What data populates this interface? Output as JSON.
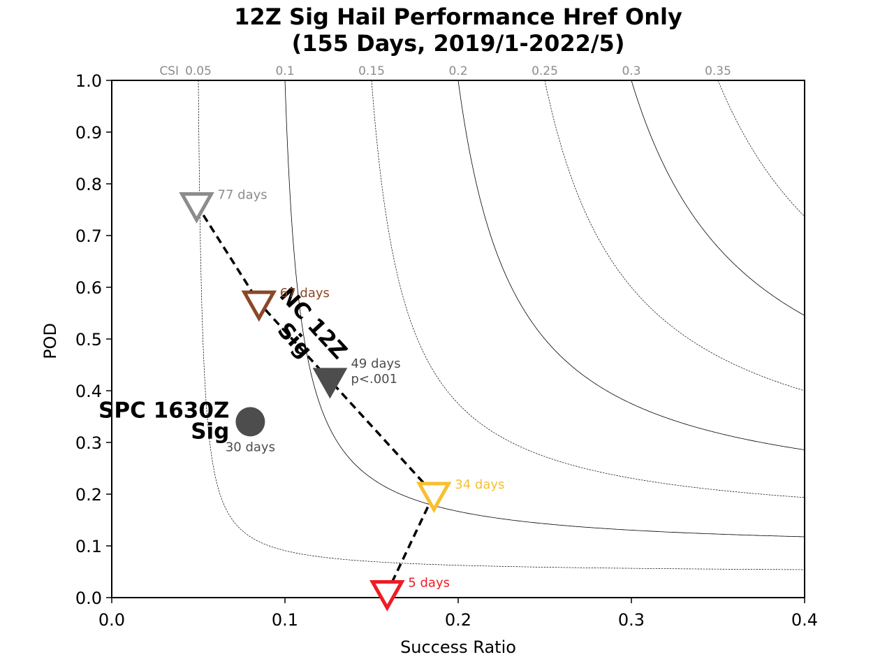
{
  "chart_data": {
    "type": "scatter",
    "title": "12Z Sig Hail Performance Href Only",
    "subtitle": "(155 Days, 2019/1-2022/5)",
    "xlabel": "Success Ratio",
    "ylabel": "POD",
    "xlim": [
      0.0,
      0.4
    ],
    "ylim": [
      0.0,
      1.0
    ],
    "xticks": [
      "0.0",
      "0.1",
      "0.2",
      "0.3",
      "0.4"
    ],
    "yticks": [
      "0.0",
      "0.1",
      "0.2",
      "0.3",
      "0.4",
      "0.5",
      "0.6",
      "0.7",
      "0.8",
      "0.9",
      "1.0"
    ],
    "csi_contours": {
      "prefix": "CSI",
      "values": [
        0.05,
        0.1,
        0.15,
        0.2,
        0.25,
        0.3,
        0.35
      ],
      "labels": [
        "0.05",
        "0.1",
        "0.15",
        "0.2",
        "0.25",
        "0.3",
        "0.35"
      ]
    },
    "markers": [
      {
        "x": 0.049,
        "y": 0.76,
        "label": "77 days",
        "color": "#8c8c8c",
        "shape": "open-triangle-down"
      },
      {
        "x": 0.085,
        "y": 0.57,
        "label": "67 days",
        "color": "#8b4726",
        "shape": "open-triangle-down"
      },
      {
        "x": 0.126,
        "y": 0.42,
        "label": "49 days",
        "sublabel": "p<.001",
        "color": "#4d4d4d",
        "shape": "filled-triangle-down"
      },
      {
        "x": 0.186,
        "y": 0.2,
        "label": "34 days",
        "color": "#f8c030",
        "shape": "open-triangle-down"
      },
      {
        "x": 0.159,
        "y": 0.01,
        "label": "5 days",
        "color": "#ee1c24",
        "shape": "open-triangle-down"
      }
    ],
    "dashed_path": [
      [
        0.049,
        0.76
      ],
      [
        0.085,
        0.57
      ],
      [
        0.126,
        0.42
      ],
      [
        0.186,
        0.2
      ],
      [
        0.159,
        0.01
      ]
    ],
    "rotated_label": {
      "line1": "NC 12Z",
      "line2": "Sig"
    },
    "spc_point": {
      "x": 0.08,
      "y": 0.34,
      "label_line1": "SPC 1630Z",
      "label_line2": "Sig",
      "days": "30 days",
      "color": "#4d4d4d"
    }
  }
}
